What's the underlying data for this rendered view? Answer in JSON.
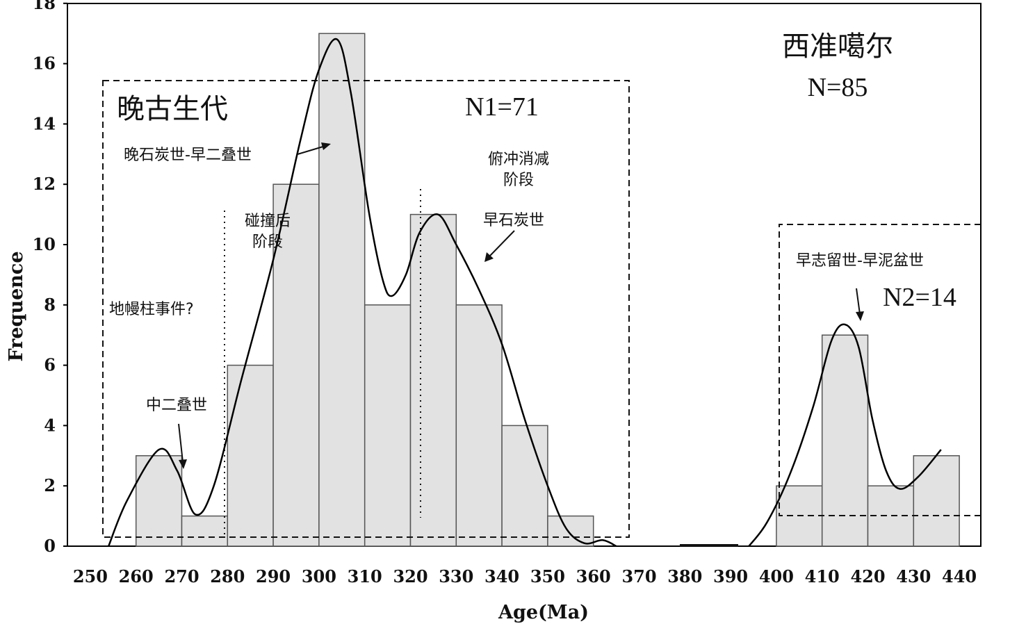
{
  "chart_data": {
    "type": "bar",
    "xlabel": "Age(Ma)",
    "ylabel": "Frequence",
    "xlim": [
      245,
      440
    ],
    "ylim": [
      0,
      18
    ],
    "x_ticks": [
      250,
      260,
      270,
      280,
      290,
      300,
      310,
      320,
      330,
      340,
      350,
      360,
      370,
      380,
      390,
      400,
      410,
      420,
      430,
      440
    ],
    "y_ticks": [
      0,
      2,
      4,
      6,
      8,
      10,
      12,
      14,
      16,
      18
    ],
    "bin_width": 10,
    "bars": [
      {
        "start": 260,
        "value": 3
      },
      {
        "start": 270,
        "value": 1
      },
      {
        "start": 280,
        "value": 6
      },
      {
        "start": 290,
        "value": 12
      },
      {
        "start": 300,
        "value": 17
      },
      {
        "start": 310,
        "value": 8
      },
      {
        "start": 320,
        "value": 11
      },
      {
        "start": 330,
        "value": 8
      },
      {
        "start": 340,
        "value": 4
      },
      {
        "start": 350,
        "value": 1
      },
      {
        "start": 400,
        "value": 2
      },
      {
        "start": 410,
        "value": 7
      },
      {
        "start": 420,
        "value": 2
      },
      {
        "start": 430,
        "value": 3
      }
    ],
    "density_curve_1": [
      [
        254,
        0
      ],
      [
        258,
        1.5
      ],
      [
        265,
        3.2
      ],
      [
        269,
        2.5
      ],
      [
        273,
        1.05
      ],
      [
        277,
        2.0
      ],
      [
        283,
        5.5
      ],
      [
        290,
        9.5
      ],
      [
        296,
        13.5
      ],
      [
        300,
        15.8
      ],
      [
        304,
        16.8
      ],
      [
        307,
        15.0
      ],
      [
        311,
        11.0
      ],
      [
        314,
        8.8
      ],
      [
        316,
        8.3
      ],
      [
        319,
        9.0
      ],
      [
        322,
        10.4
      ],
      [
        326,
        11.0
      ],
      [
        330,
        10.0
      ],
      [
        335,
        8.5
      ],
      [
        340,
        6.7
      ],
      [
        345,
        4.2
      ],
      [
        350,
        2.0
      ],
      [
        354,
        0.6
      ],
      [
        358,
        0.1
      ],
      [
        362,
        0.2
      ],
      [
        365,
        0
      ]
    ],
    "density_curve_2": [
      [
        394,
        0
      ],
      [
        398,
        0.8
      ],
      [
        403,
        2.4
      ],
      [
        408,
        4.6
      ],
      [
        412,
        6.8
      ],
      [
        415,
        7.35
      ],
      [
        418,
        6.6
      ],
      [
        421,
        4.2
      ],
      [
        424,
        2.5
      ],
      [
        427,
        1.9
      ],
      [
        431,
        2.3
      ],
      [
        436,
        3.2
      ]
    ],
    "title_block": {
      "line1": "西准噶尔",
      "line2": "N=85"
    },
    "group1": {
      "label": "晚古生代",
      "n": "N1=71"
    },
    "group2": {
      "n": "N2=14"
    },
    "annotations": {
      "late_carb_early_perm": "晚石炭世-早二叠世",
      "post_collision_l1": "碰撞后",
      "post_collision_l2": "阶段",
      "subduction_l1": "俯冲消减",
      "subduction_l2": "阶段",
      "early_carb": "早石炭世",
      "mantle_plume": "地幔柱事件?",
      "middle_perm": "中二叠世",
      "silurian_devonian": "早志留世-早泥盆世"
    },
    "colors": {
      "bar_fill": "#e2e2e2",
      "bar_stroke": "#555555",
      "curve": "#000000",
      "frame": "#000000"
    }
  }
}
